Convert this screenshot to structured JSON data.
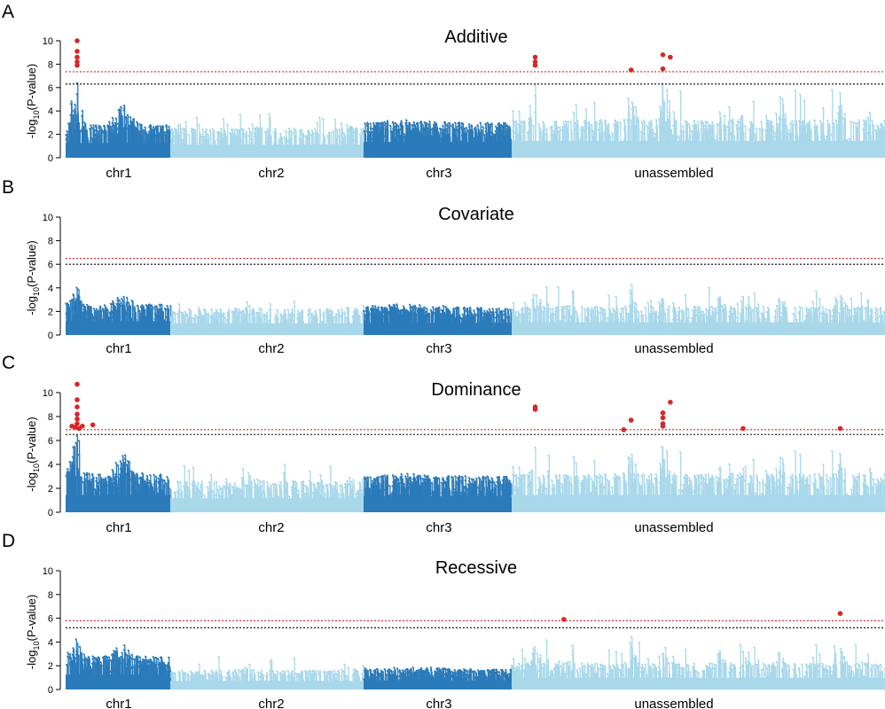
{
  "colors": {
    "dark": "#2b7bba",
    "light": "#a8d8ea",
    "sig_point": "#d62728",
    "red_line": "#d62728",
    "black_line": "#000000"
  },
  "chart_data": [
    {
      "type": "scatter",
      "panel_letter": "A",
      "title": "Additive",
      "ylabel_base": "-log",
      "ylabel_sub": "10",
      "ylabel_rest": "(P-value)",
      "ylim": [
        0,
        10
      ],
      "yticks": [
        "0",
        "2",
        "4",
        "6",
        "8",
        "10"
      ],
      "categories": [
        "chr1",
        "chr2",
        "chr3",
        "unassembled"
      ],
      "thresholds": {
        "red": 7.35,
        "black": 6.3
      },
      "series": [
        {
          "category": "chr1",
          "typical_max": 2.8,
          "peak": 7.0
        },
        {
          "category": "chr2",
          "typical_max": 2.5,
          "peak": 4.3
        },
        {
          "category": "chr3",
          "typical_max": 3.0,
          "peak": 4.0
        },
        {
          "category": "unassembled",
          "typical_max": 3.2,
          "peak": 7.0
        }
      ],
      "significant_points": [
        {
          "category": "chr1",
          "pos": 0.11,
          "y": 10.0
        },
        {
          "category": "chr1",
          "pos": 0.11,
          "y": 9.1
        },
        {
          "category": "chr1",
          "pos": 0.11,
          "y": 8.6
        },
        {
          "category": "chr1",
          "pos": 0.11,
          "y": 8.2
        },
        {
          "category": "chr1",
          "pos": 0.11,
          "y": 7.9
        },
        {
          "category": "unassembled",
          "pos": 0.063,
          "y": 8.6
        },
        {
          "category": "unassembled",
          "pos": 0.063,
          "y": 8.2
        },
        {
          "category": "unassembled",
          "pos": 0.063,
          "y": 7.9
        },
        {
          "category": "unassembled",
          "pos": 0.32,
          "y": 7.5
        },
        {
          "category": "unassembled",
          "pos": 0.405,
          "y": 8.8
        },
        {
          "category": "unassembled",
          "pos": 0.405,
          "y": 7.6
        },
        {
          "category": "unassembled",
          "pos": 0.425,
          "y": 8.6
        }
      ]
    },
    {
      "type": "scatter",
      "panel_letter": "B",
      "title": "Covariate",
      "ylabel_base": "-log",
      "ylabel_sub": "10",
      "ylabel_rest": "(P-value)",
      "ylim": [
        0,
        10
      ],
      "yticks": [
        "0",
        "2",
        "4",
        "6",
        "8",
        "10"
      ],
      "categories": [
        "chr1",
        "chr2",
        "chr3",
        "unassembled"
      ],
      "thresholds": {
        "red": 6.5,
        "black": 6.0
      },
      "series": [
        {
          "category": "chr1",
          "typical_max": 2.6,
          "peak": 4.4
        },
        {
          "category": "chr2",
          "typical_max": 2.2,
          "peak": 3.3
        },
        {
          "category": "chr3",
          "typical_max": 2.3,
          "peak": 4.0
        },
        {
          "category": "unassembled",
          "typical_max": 2.4,
          "peak": 4.8
        }
      ],
      "significant_points": []
    },
    {
      "type": "scatter",
      "panel_letter": "C",
      "title": "Dominance",
      "ylabel_base": "-log",
      "ylabel_sub": "10",
      "ylabel_rest": "(P-value)",
      "ylim": [
        0,
        10
      ],
      "yticks": [
        "0",
        "2",
        "4",
        "6",
        "8",
        "10"
      ],
      "categories": [
        "chr1",
        "chr2",
        "chr3",
        "unassembled"
      ],
      "thresholds": {
        "red": 6.9,
        "black": 6.5
      },
      "series": [
        {
          "category": "chr1",
          "typical_max": 3.2,
          "peak": 7.0
        },
        {
          "category": "chr2",
          "typical_max": 2.6,
          "peak": 5.2
        },
        {
          "category": "chr3",
          "typical_max": 3.0,
          "peak": 4.3
        },
        {
          "category": "unassembled",
          "typical_max": 3.2,
          "peak": 6.0
        }
      ],
      "significant_points": [
        {
          "category": "chr1",
          "pos": 0.11,
          "y": 10.7
        },
        {
          "category": "chr1",
          "pos": 0.11,
          "y": 9.4
        },
        {
          "category": "chr1",
          "pos": 0.11,
          "y": 8.8
        },
        {
          "category": "chr1",
          "pos": 0.11,
          "y": 8.2
        },
        {
          "category": "chr1",
          "pos": 0.11,
          "y": 7.8
        },
        {
          "category": "chr1",
          "pos": 0.11,
          "y": 7.4
        },
        {
          "category": "chr1",
          "pos": 0.06,
          "y": 7.2
        },
        {
          "category": "chr1",
          "pos": 0.09,
          "y": 7.1
        },
        {
          "category": "chr1",
          "pos": 0.13,
          "y": 7.0
        },
        {
          "category": "chr1",
          "pos": 0.16,
          "y": 7.2
        },
        {
          "category": "chr1",
          "pos": 0.26,
          "y": 7.3
        },
        {
          "category": "unassembled",
          "pos": 0.063,
          "y": 8.8
        },
        {
          "category": "unassembled",
          "pos": 0.063,
          "y": 8.6
        },
        {
          "category": "unassembled",
          "pos": 0.3,
          "y": 6.9
        },
        {
          "category": "unassembled",
          "pos": 0.32,
          "y": 7.7
        },
        {
          "category": "unassembled",
          "pos": 0.405,
          "y": 8.3
        },
        {
          "category": "unassembled",
          "pos": 0.405,
          "y": 7.9
        },
        {
          "category": "unassembled",
          "pos": 0.405,
          "y": 7.4
        },
        {
          "category": "unassembled",
          "pos": 0.405,
          "y": 7.2
        },
        {
          "category": "unassembled",
          "pos": 0.425,
          "y": 9.2
        },
        {
          "category": "unassembled",
          "pos": 0.62,
          "y": 7.0
        },
        {
          "category": "unassembled",
          "pos": 0.88,
          "y": 7.0
        }
      ]
    },
    {
      "type": "scatter",
      "panel_letter": "D",
      "title": "Recessive",
      "ylabel_base": "-log",
      "ylabel_sub": "10",
      "ylabel_rest": "(P-value)",
      "ylim": [
        0,
        10
      ],
      "yticks": [
        "0",
        "2",
        "4",
        "6",
        "8",
        "10"
      ],
      "categories": [
        "chr1",
        "chr2",
        "chr3",
        "unassembled"
      ],
      "thresholds": {
        "red": 5.8,
        "black": 5.2
      },
      "series": [
        {
          "category": "chr1",
          "typical_max": 2.8,
          "peak": 5.2
        },
        {
          "category": "chr2",
          "typical_max": 1.6,
          "peak": 3.4
        },
        {
          "category": "chr3",
          "typical_max": 1.7,
          "peak": 2.8
        },
        {
          "category": "unassembled",
          "typical_max": 2.2,
          "peak": 5.0
        }
      ],
      "significant_points": [
        {
          "category": "unassembled",
          "pos": 0.14,
          "y": 5.9
        },
        {
          "category": "unassembled",
          "pos": 0.88,
          "y": 6.4
        }
      ]
    }
  ]
}
